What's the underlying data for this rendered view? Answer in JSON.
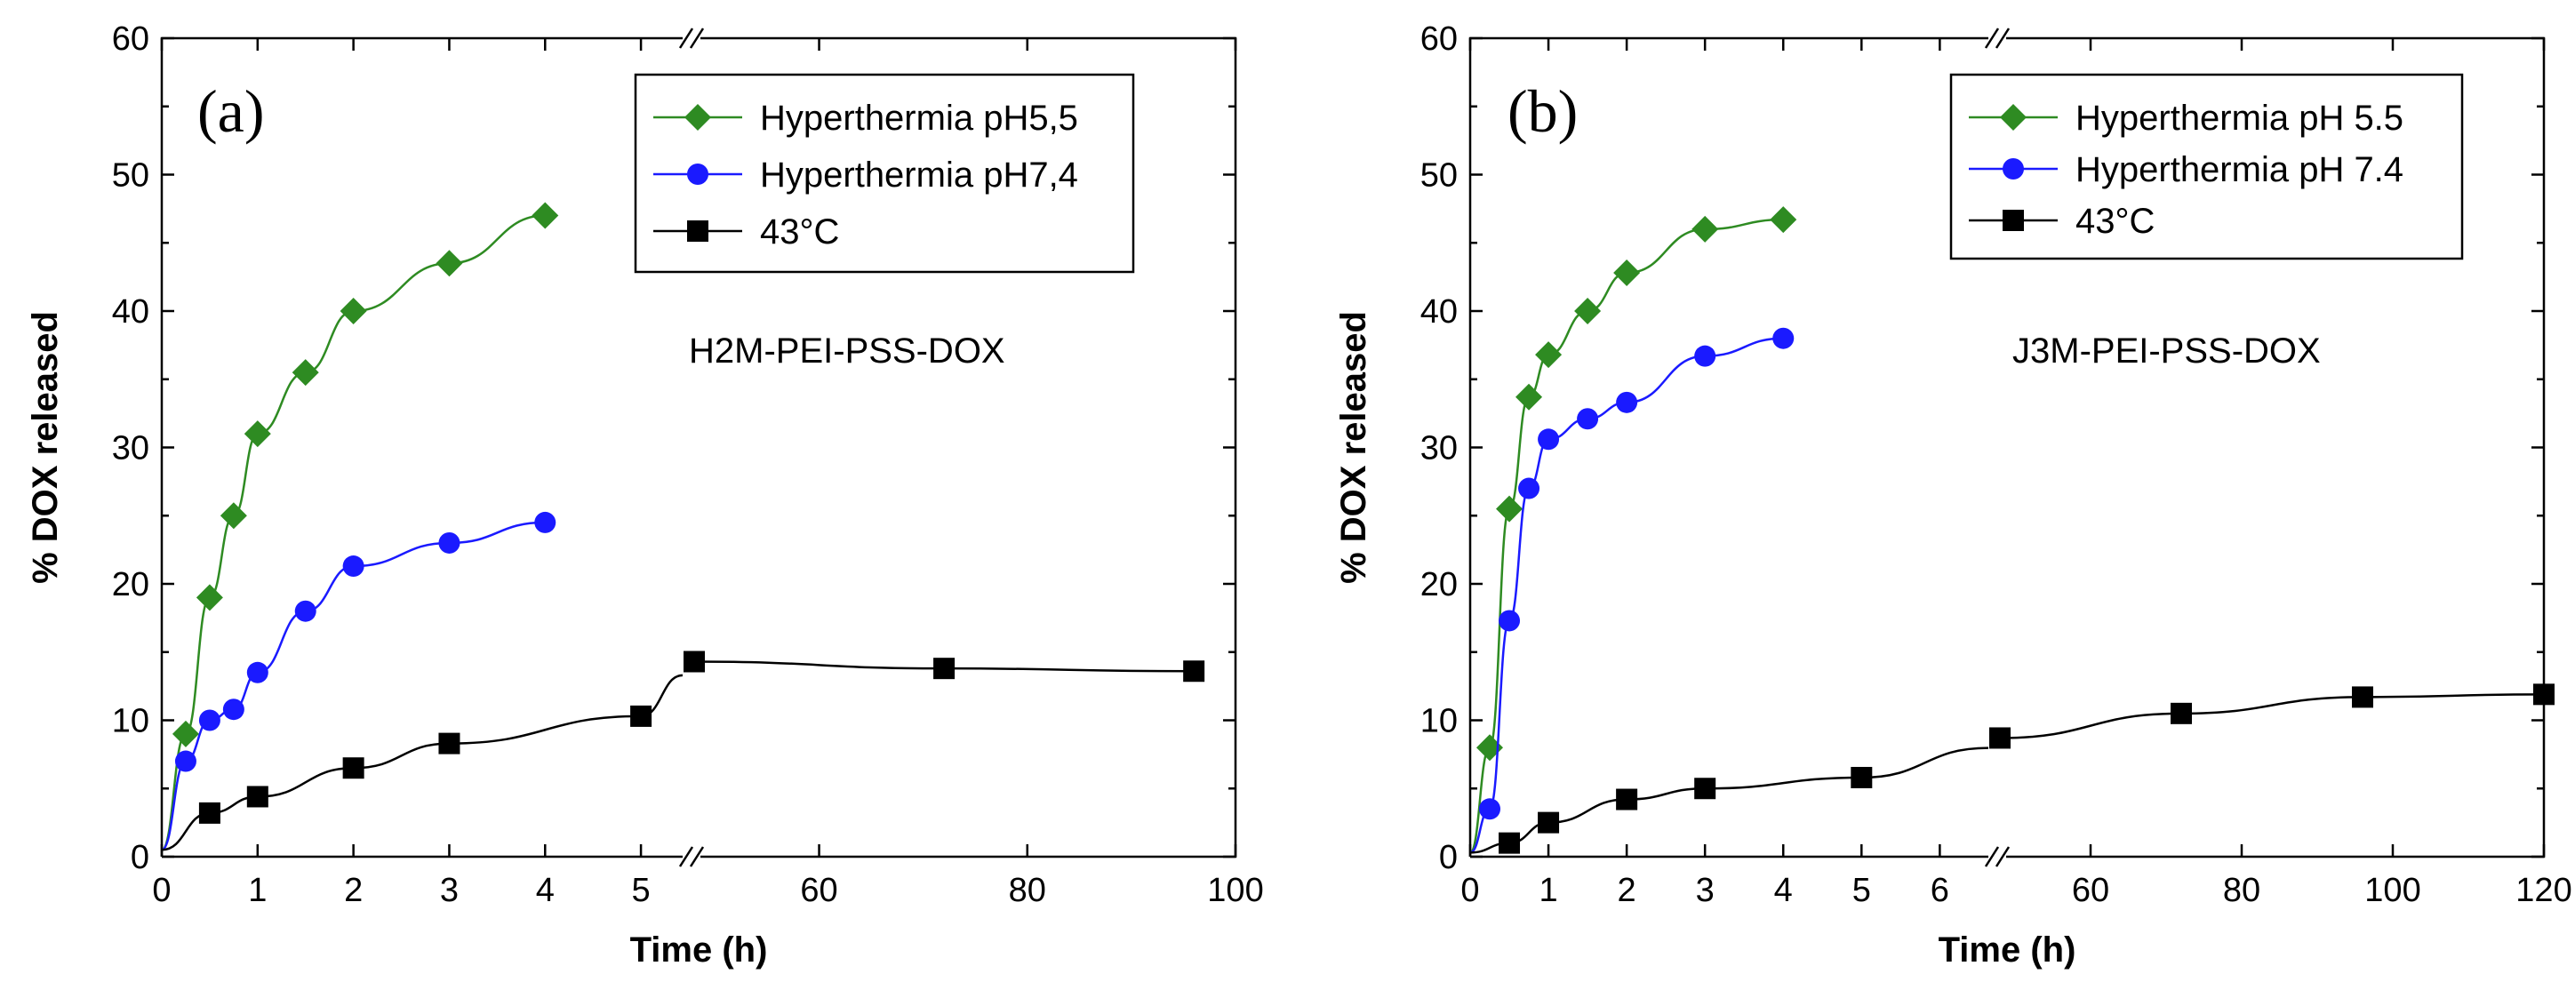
{
  "chart_data": [
    {
      "type": "line",
      "panel_label": "(a)",
      "annotation": "H2M-PEI-PSS-DOX",
      "xlabel": "Time (h)",
      "ylabel": "% DOX released",
      "ylim": [
        0,
        60
      ],
      "yticks": [
        "0",
        "10",
        "20",
        "30",
        "40",
        "50",
        "60"
      ],
      "axis_break": "between 5.5 h and 48 h",
      "segments": [
        {
          "xlim": [
            0,
            5.5
          ],
          "ticks": [
            "0",
            "1",
            "2",
            "3",
            "4",
            "5"
          ]
        },
        {
          "xlim": [
            48,
            100
          ],
          "ticks": [
            "60",
            "80",
            "100"
          ]
        }
      ],
      "legend_position": "top-right",
      "series": [
        {
          "name": "Hyperthermia pH5,5",
          "color": "#2e8b22",
          "marker": "diamond",
          "x": [
            0,
            0.25,
            0.5,
            0.75,
            1,
            1.5,
            2,
            3,
            4
          ],
          "y": [
            0.5,
            9,
            19,
            25,
            31,
            35.5,
            40,
            43.5,
            47
          ]
        },
        {
          "name": "Hyperthermia pH7,4",
          "color": "#1a1aff",
          "marker": "circle",
          "x": [
            0,
            0.25,
            0.5,
            0.75,
            1,
            1.5,
            2,
            3,
            4
          ],
          "y": [
            0.5,
            7,
            10,
            10.8,
            13.5,
            18,
            21.3,
            23,
            24.5
          ]
        },
        {
          "name": "43°C",
          "color": "#000000",
          "marker": "square",
          "x": [
            0,
            0.5,
            1,
            2,
            3,
            5,
            48,
            72,
            96
          ],
          "y": [
            0.5,
            3.2,
            4.4,
            6.5,
            8.3,
            10.3,
            14.3,
            13.8,
            13.6
          ]
        }
      ]
    },
    {
      "type": "line",
      "panel_label": "(b)",
      "annotation": "J3M-PEI-PSS-DOX",
      "xlabel": "Time (h)",
      "ylabel": "% DOX released",
      "ylim": [
        0,
        60
      ],
      "yticks": [
        "0",
        "10",
        "20",
        "30",
        "40",
        "50",
        "60"
      ],
      "axis_break": "between 6.7 h and 48 h",
      "segments": [
        {
          "xlim": [
            0,
            6.7
          ],
          "ticks": [
            "0",
            "1",
            "2",
            "3",
            "4",
            "5",
            "6"
          ]
        },
        {
          "xlim": [
            48,
            120
          ],
          "ticks": [
            "60",
            "80",
            "100",
            "120"
          ]
        }
      ],
      "legend_position": "top-right",
      "series": [
        {
          "name": "Hyperthermia pH 5.5",
          "color": "#2e8b22",
          "marker": "diamond",
          "x": [
            0,
            0.25,
            0.5,
            0.75,
            1,
            1.5,
            2,
            3,
            4
          ],
          "y": [
            0.3,
            8,
            25.5,
            33.7,
            36.8,
            40,
            42.8,
            46,
            46.7
          ]
        },
        {
          "name": "Hyperthermia pH 7.4",
          "color": "#1a1aff",
          "marker": "circle",
          "x": [
            0,
            0.25,
            0.5,
            0.75,
            1,
            1.5,
            2,
            3,
            4
          ],
          "y": [
            0.3,
            3.5,
            17.3,
            27,
            30.6,
            32.1,
            33.3,
            36.7,
            38
          ]
        },
        {
          "name": "43°C",
          "color": "#000000",
          "marker": "square",
          "x": [
            0,
            0.5,
            1,
            2,
            3,
            5,
            48,
            72,
            96,
            120
          ],
          "y": [
            0.3,
            1,
            2.5,
            4.2,
            5,
            5.8,
            8.7,
            10.5,
            11.7,
            11.9
          ]
        }
      ]
    }
  ]
}
